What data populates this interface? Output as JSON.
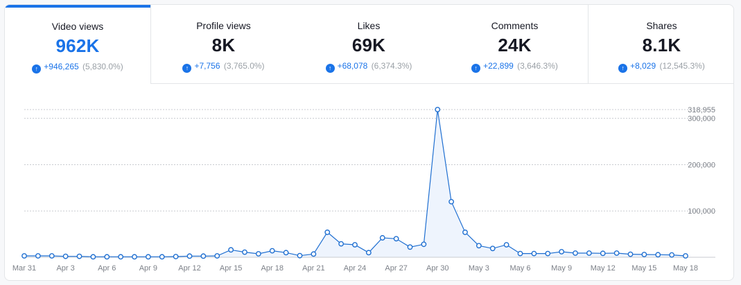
{
  "tabs": [
    {
      "label": "Video views",
      "value": "962K",
      "delta": "+946,265",
      "pct": "(5,830.0%)",
      "active": true
    },
    {
      "label": "Profile views",
      "value": "8K",
      "delta": "+7,756",
      "pct": "(3,765.0%)"
    },
    {
      "label": "Likes",
      "value": "69K",
      "delta": "+68,078",
      "pct": "(6,374.3%)"
    },
    {
      "label": "Comments",
      "value": "24K",
      "delta": "+22,899",
      "pct": "(3,646.3%)"
    },
    {
      "label": "Shares",
      "value": "8.1K",
      "delta": "+8,029",
      "pct": "(12,545.3%)"
    }
  ],
  "colors": {
    "accent": "#1a73e8",
    "line": "#1f6fd1",
    "area": "#eef4fd"
  },
  "chart_data": {
    "type": "area",
    "title": "Video views",
    "x": [
      "Mar 31",
      "Apr 1",
      "Apr 2",
      "Apr 3",
      "Apr 4",
      "Apr 5",
      "Apr 6",
      "Apr 7",
      "Apr 8",
      "Apr 9",
      "Apr 10",
      "Apr 11",
      "Apr 12",
      "Apr 13",
      "Apr 14",
      "Apr 15",
      "Apr 16",
      "Apr 17",
      "Apr 18",
      "Apr 19",
      "Apr 20",
      "Apr 21",
      "Apr 22",
      "Apr 23",
      "Apr 24",
      "Apr 25",
      "Apr 26",
      "Apr 27",
      "Apr 28",
      "Apr 29",
      "Apr 30",
      "May 1",
      "May 2",
      "May 3",
      "May 4",
      "May 5",
      "May 6",
      "May 7",
      "May 8",
      "May 9",
      "May 10",
      "May 11",
      "May 12",
      "May 13",
      "May 14",
      "May 15",
      "May 16",
      "May 17",
      "May 18"
    ],
    "values": [
      3000,
      3000,
      3000,
      2000,
      2000,
      1000,
      1000,
      1000,
      1000,
      1000,
      1000,
      1500,
      2500,
      2500,
      3000,
      16000,
      11000,
      7500,
      14000,
      10000,
      3500,
      7000,
      54000,
      29000,
      27000,
      10000,
      42000,
      40000,
      22000,
      28000,
      318955,
      120000,
      54000,
      25000,
      19000,
      27000,
      8000,
      8000,
      8000,
      12000,
      9000,
      9000,
      8500,
      9000,
      6500,
      6000,
      5500,
      5000,
      3000
    ],
    "tick_labels": [
      "Mar 31",
      "Apr 3",
      "Apr 6",
      "Apr 9",
      "Apr 12",
      "Apr 15",
      "Apr 18",
      "Apr 21",
      "Apr 24",
      "Apr 27",
      "Apr 30",
      "May 3",
      "May 6",
      "May 9",
      "May 12",
      "May 15",
      "May 18"
    ],
    "tick_index": [
      0,
      3,
      6,
      9,
      12,
      15,
      18,
      21,
      24,
      27,
      30,
      33,
      36,
      39,
      42,
      45,
      48
    ],
    "y_ticks": [
      100000,
      200000,
      300000
    ],
    "y_tick_labels": [
      "100,000",
      "200,000",
      "300,000"
    ],
    "peak_label": "318,955",
    "peak_value": 318955,
    "ylim": [
      0,
      318955
    ]
  }
}
